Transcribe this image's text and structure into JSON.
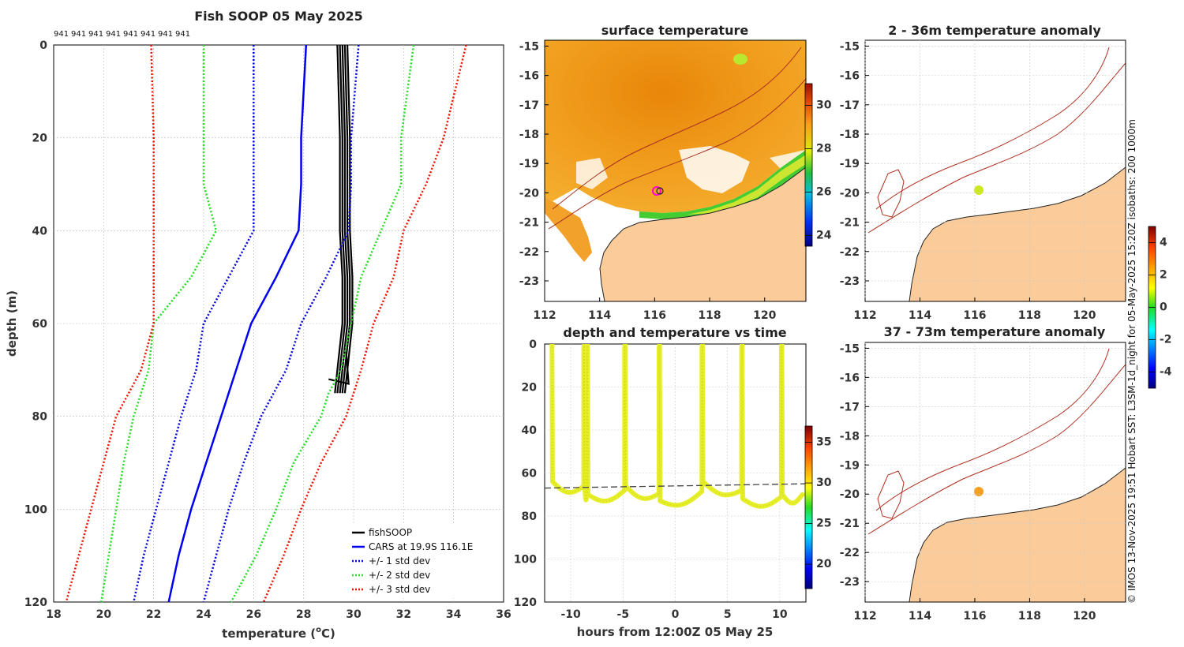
{
  "figure_title": "Fish SOOP 05 May 2025",
  "depth_count_labels": [
    "941",
    "941",
    "941",
    "941",
    "941",
    "941",
    "941",
    "941"
  ],
  "credit": "© IMOS 13-Nov-2025 19:51 Hobart SST: L3SM-1d_night for 05-May-2025 15:20Z isobaths: 200  1000m",
  "colors": {
    "fishsoop": "#000000",
    "cars": "#0000ee",
    "std1": "#0000dd",
    "std2": "#22dd22",
    "std3": "#ee1100",
    "land": "#fbcb9a",
    "sst_warm": "#f0a020",
    "isobath": "#b03020",
    "yellow_trace": "#e6ee2a"
  },
  "chart_data": [
    {
      "type": "line",
      "title": "Fish SOOP 05 May 2025",
      "xlabel": "temperature (",
      "xlabel_super": "o",
      "xlabel_unit": "C)",
      "ylabel": "depth (m)",
      "xlim": [
        18,
        36
      ],
      "ylim": [
        0,
        120
      ],
      "y_inverted": true,
      "xticks": [
        "18",
        "20",
        "22",
        "24",
        "26",
        "28",
        "30",
        "32",
        "34",
        "36"
      ],
      "yticks": [
        "0",
        "20",
        "40",
        "60",
        "80",
        "100",
        "120"
      ],
      "depth": [
        0,
        20,
        30,
        40,
        50,
        60,
        70,
        75,
        80,
        90,
        100,
        110,
        120
      ],
      "series": [
        {
          "name": "fishSOOP",
          "key": "fishsoop",
          "style": "solid",
          "temp": [
            29.5,
            29.6,
            29.6,
            29.6,
            29.7,
            29.7,
            29.5,
            29.4,
            null,
            null,
            null,
            null,
            null
          ]
        },
        {
          "name": "CARS at 19.9S 116.1E",
          "key": "cars",
          "style": "solid",
          "temp": [
            28.1,
            27.9,
            27.9,
            27.8,
            26.9,
            25.9,
            25.3,
            25.0,
            24.7,
            24.1,
            23.5,
            23.0,
            22.6
          ]
        },
        {
          "name": "+/- 1 std dev",
          "key": "std1",
          "style": "dotted",
          "temp_low": [
            26.0,
            26.0,
            26.0,
            26.0,
            25.0,
            24.0,
            23.7,
            23.4,
            23.1,
            22.6,
            22.1,
            21.6,
            21.2
          ],
          "temp_high": [
            30.2,
            29.9,
            29.9,
            29.8,
            28.9,
            27.9,
            27.3,
            26.8,
            26.3,
            25.6,
            25.0,
            24.5,
            24.0
          ]
        },
        {
          "name": "+/- 2 std dev",
          "key": "std2",
          "style": "dotted",
          "temp_low": [
            24.0,
            24.0,
            24.0,
            24.5,
            23.5,
            22.0,
            21.8,
            21.5,
            21.2,
            20.8,
            20.5,
            20.2,
            19.9
          ],
          "temp_high": [
            32.4,
            31.9,
            31.9,
            31.1,
            30.3,
            29.9,
            29.5,
            29.0,
            28.7,
            27.6,
            26.9,
            26.1,
            25.1
          ]
        },
        {
          "name": "+/- 3 std dev",
          "key": "std3",
          "style": "dotted",
          "temp_low": [
            21.9,
            22.0,
            22.0,
            22.0,
            22.0,
            22.0,
            21.5,
            21.0,
            20.5,
            20.0,
            19.5,
            19.0,
            18.5
          ],
          "temp_high": [
            34.5,
            33.6,
            32.9,
            32.0,
            31.6,
            30.8,
            30.3,
            30.0,
            29.7,
            28.7,
            27.9,
            27.2,
            26.4
          ]
        }
      ],
      "legend_placement": "bottom-right"
    },
    {
      "type": "heatmap",
      "title": "surface temperature",
      "xticks": [
        "112",
        "114",
        "116",
        "118",
        "120"
      ],
      "yticks": [
        "-15",
        "-16",
        "-17",
        "-18",
        "-19",
        "-20",
        "-21",
        "-22",
        "-23"
      ],
      "xlim": [
        112,
        121.5
      ],
      "ylim": [
        -23.7,
        -14.8
      ],
      "colorbar": {
        "ticks": [
          "24",
          "26",
          "28",
          "30"
        ],
        "range": [
          23.5,
          31
        ]
      },
      "marker_position": [
        116.1,
        -19.9
      ]
    },
    {
      "type": "heatmap",
      "title": "2 - 36m temperature anomaly",
      "xticks": [
        "112",
        "114",
        "116",
        "118",
        "120"
      ],
      "yticks": [
        "-15",
        "-16",
        "-17",
        "-18",
        "-19",
        "-20",
        "-21",
        "-22",
        "-23"
      ],
      "xlim": [
        112,
        121.5
      ],
      "ylim": [
        -23.7,
        -14.8
      ],
      "anomaly_at_marker": 1.5
    },
    {
      "type": "scatter",
      "title": "depth and temperature vs time",
      "xlabel": "hours from 12:00Z 05 May 25",
      "xlim": [
        -12.5,
        12.5
      ],
      "ylim": [
        0,
        120
      ],
      "y_inverted": true,
      "xticks": [
        "-10",
        "-5",
        "0",
        "5",
        "10"
      ],
      "yticks": [
        "0",
        "20",
        "40",
        "60",
        "80",
        "100",
        "120"
      ],
      "profile_hours": [
        -11.8,
        -8.7,
        -8.4,
        -4.8,
        -1.5,
        2.6,
        6.4,
        10.2
      ],
      "bottom_depth": [
        64,
        68,
        70,
        66,
        73,
        64,
        72,
        70
      ],
      "reference_depth": [
        67,
        65
      ],
      "colorbar": {
        "ticks": [
          "20",
          "25",
          "30",
          "35"
        ],
        "range": [
          17,
          37
        ]
      },
      "trace_temp": 29.5
    },
    {
      "type": "heatmap",
      "title": "37 - 73m temperature anomaly",
      "xticks": [
        "112",
        "114",
        "116",
        "118",
        "120"
      ],
      "yticks": [
        "-15",
        "-16",
        "-17",
        "-18",
        "-19",
        "-20",
        "-21",
        "-22",
        "-23"
      ],
      "xlim": [
        112,
        121.5
      ],
      "ylim": [
        -23.7,
        -14.8
      ],
      "anomaly_at_marker": 2.5,
      "colorbar": {
        "ticks": [
          "-4",
          "-2",
          "0",
          "2",
          "4"
        ],
        "range": [
          -5,
          5
        ]
      }
    }
  ]
}
